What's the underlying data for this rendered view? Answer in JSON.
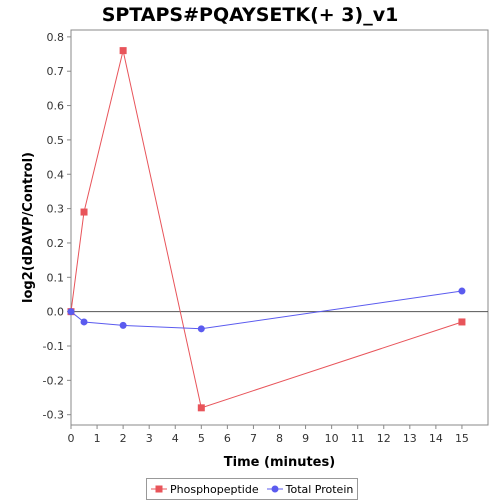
{
  "chart_data": {
    "type": "line",
    "title": "SPTAPS#PQAYSETK(+ 3)_v1",
    "xlabel": "Time (minutes)",
    "ylabel": "log2(dDAVP/Control)",
    "xlim": [
      0,
      16
    ],
    "ylim": [
      -0.33,
      0.82
    ],
    "x_ticks": [
      0,
      1,
      2,
      3,
      4,
      5,
      6,
      7,
      8,
      9,
      10,
      11,
      12,
      13,
      14,
      15
    ],
    "y_ticks": [
      -0.3,
      -0.2,
      -0.1,
      0.0,
      0.1,
      0.2,
      0.3,
      0.4,
      0.5,
      0.6,
      0.7,
      0.8
    ],
    "x_tick_labels": [
      "0",
      "1",
      "2",
      "3",
      "4",
      "5",
      "6",
      "7",
      "8",
      "9",
      "10",
      "11",
      "12",
      "13",
      "14",
      "15"
    ],
    "y_tick_labels": [
      "-0.3",
      "-0.2",
      "-0.1",
      "0.0",
      "0.1",
      "0.2",
      "0.3",
      "0.4",
      "0.5",
      "0.6",
      "0.7",
      "0.8"
    ],
    "zero_line": true,
    "grid": false,
    "legend_position": "bottom",
    "series": [
      {
        "name": "Phosphopeptide",
        "color": "#e8545a",
        "marker": "square",
        "x": [
          0,
          0.5,
          2,
          5,
          15
        ],
        "y": [
          0.0,
          0.29,
          0.76,
          -0.28,
          -0.03
        ]
      },
      {
        "name": "Total Protein",
        "color": "#5b5bef",
        "marker": "circle",
        "x": [
          0,
          0.5,
          2,
          5,
          15
        ],
        "y": [
          0.0,
          -0.03,
          -0.04,
          -0.05,
          0.06
        ]
      }
    ]
  }
}
